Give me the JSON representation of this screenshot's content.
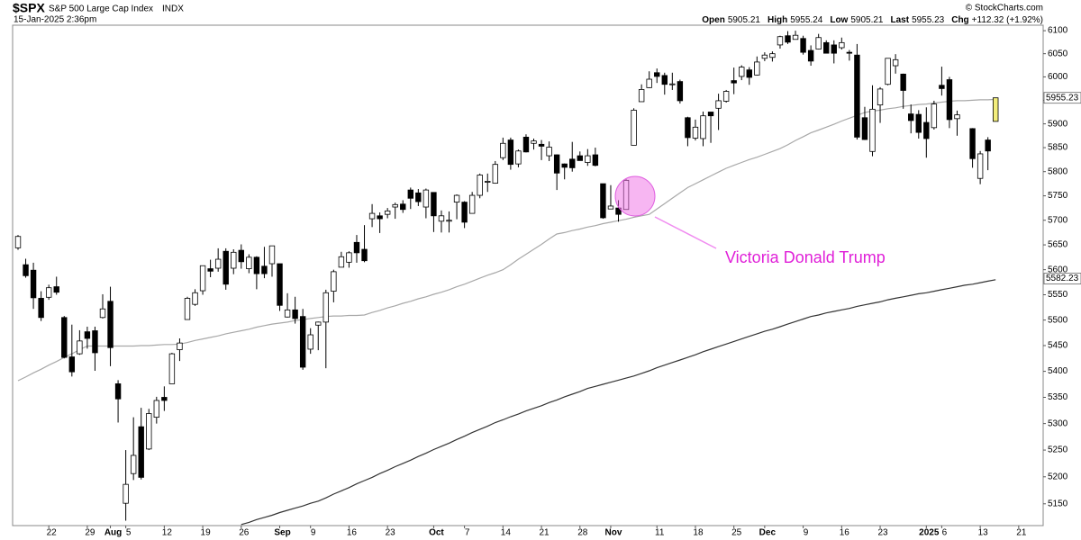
{
  "chart_data": {
    "type": "candlestick",
    "symbol": "$SPX",
    "title": "S&P 500 Large Cap Index",
    "exchange": "INDX",
    "timestamp": "15-Jan-2025 2:36pm",
    "source": "© StockCharts.com",
    "quote": [
      {
        "label": "Open",
        "value": "5905.21"
      },
      {
        "label": "High",
        "value": "5955.24"
      },
      {
        "label": "Low",
        "value": "5905.21"
      },
      {
        "label": "Last",
        "value": "5955.23"
      },
      {
        "label": "Chg",
        "value": "+112.32 (+1.92%)"
      }
    ],
    "annotation": "Victoria Donald Trump",
    "log_scale": true,
    "ylim": [
      5110,
      6112
    ],
    "yticks": [
      5150,
      5200,
      5250,
      5300,
      5350,
      5400,
      5450,
      5500,
      5550,
      5600,
      5650,
      5700,
      5750,
      5800,
      5850,
      5900,
      5950,
      6000,
      6050,
      6100
    ],
    "up_color": "#ffffff",
    "down_color": "#000000",
    "last_color": "#f3ee7c",
    "price_markers": [
      5955.23,
      5582.23
    ],
    "categories": [
      null,
      null,
      null,
      null,
      "22",
      null,
      null,
      null,
      null,
      "29",
      null,
      null,
      "Aug",
      null,
      "5",
      null,
      null,
      null,
      null,
      "12",
      null,
      null,
      null,
      null,
      "19",
      null,
      null,
      null,
      null,
      "26",
      null,
      null,
      null,
      null,
      "Sep",
      null,
      null,
      null,
      "9",
      null,
      null,
      null,
      null,
      "16",
      null,
      null,
      null,
      null,
      "23",
      null,
      null,
      null,
      null,
      null,
      "Oct",
      null,
      null,
      null,
      "7",
      null,
      null,
      null,
      null,
      "14",
      null,
      null,
      null,
      null,
      "21",
      null,
      null,
      null,
      null,
      "28",
      null,
      null,
      null,
      "Nov",
      null,
      null,
      null,
      null,
      null,
      "11",
      null,
      null,
      null,
      null,
      "18",
      null,
      null,
      null,
      null,
      "25",
      null,
      null,
      null,
      "Dec",
      null,
      null,
      null,
      null,
      "9",
      null,
      null,
      null,
      null,
      "16",
      null,
      null,
      null,
      null,
      "23",
      null,
      null,
      null,
      null,
      null,
      "2025",
      null,
      "6",
      null,
      null,
      null,
      null,
      "13",
      null,
      null,
      null,
      null,
      "21"
    ],
    "open": [
      5644,
      5610,
      5599,
      5543,
      5545,
      5566,
      5505,
      5428,
      5434,
      5477,
      5479,
      5505,
      5537,
      5376,
      5151,
      5206,
      5294,
      5252,
      5312,
      5350,
      5376,
      5442,
      5501,
      5531,
      5558,
      5602,
      5603,
      5637,
      5603,
      5639,
      5602,
      5625,
      5607,
      5612,
      5612,
      5506,
      5520,
      5507,
      5443,
      5490,
      5496,
      5557,
      5605,
      5615,
      5655,
      5641,
      5703,
      5709,
      5712,
      5727,
      5733,
      5762,
      5756,
      5727,
      5757,
      5698,
      5698,
      5737,
      5737,
      5714,
      5751,
      5778,
      5776,
      5829,
      5866,
      5816,
      5872,
      5859,
      5857,
      5833,
      5835,
      5816,
      5826,
      5833,
      5819,
      5835,
      5775,
      5723,
      5725,
      5722,
      5855,
      5947,
      5977,
      6009,
      6003,
      5985,
      5990,
      5913,
      5870,
      5869,
      5925,
      5933,
      5948,
      5992,
      6001,
      6015,
      6004,
      6040,
      6042,
      6069,
      6089,
      6081,
      6083,
      6057,
      6060,
      6074,
      6069,
      6063,
      6053,
      6047,
      5913,
      5842,
      5940,
      5984,
      6024,
      6006,
      5921,
      5920,
      5903,
      5892,
      5982,
      5994,
      5911,
      null,
      5890,
      5786,
      5866,
      5905.21,
      null,
      null,
      null
    ],
    "high": [
      5670,
      5622,
      5614,
      5557,
      5570,
      5586,
      5508,
      5491,
      5480,
      5487,
      5487,
      5551,
      5566,
      5383,
      5250,
      5312,
      5330,
      5328,
      5351,
      5371,
      5436,
      5464,
      5546,
      5561,
      5608,
      5620,
      5643,
      5643,
      5641,
      5651,
      5631,
      5627,
      5646,
      5648,
      5612,
      5553,
      5546,
      5522,
      5484,
      5497,
      5560,
      5600,
      5636,
      5637,
      5670,
      5690,
      5733,
      5716,
      5725,
      5736,
      5741,
      5767,
      5764,
      5765,
      5757,
      5720,
      5718,
      5753,
      5739,
      5758,
      5796,
      5796,
      5822,
      5871,
      5871,
      5846,
      5878,
      5869,
      5866,
      5863,
      5836,
      5817,
      5862,
      5842,
      5847,
      5850,
      5775,
      5772,
      5741,
      5784,
      5933,
      5984,
      6012,
      6018,
      6009,
      6009,
      5994,
      5915,
      5909,
      5926,
      5925,
      5964,
      5972,
      6020,
      6025,
      6021,
      6044,
      6053,
      6055,
      6089,
      6099,
      6100,
      6089,
      6068,
      6093,
      6079,
      6079,
      6085,
      6058,
      6071,
      5936,
      5982,
      5978,
      6040,
      6049,
      6007,
      5941,
      5929,
      5935,
      5949,
      6022,
      6000,
      5928,
      null,
      5891,
      5843,
      5872,
      5955.24,
      null,
      null,
      null
    ],
    "low": [
      5640,
      5584,
      5522,
      5498,
      5540,
      5550,
      5425,
      5390,
      5432,
      5444,
      5401,
      5503,
      5410,
      5302,
      5119,
      5194,
      5195,
      5250,
      5300,
      5324,
      5376,
      5420,
      5501,
      5528,
      5550,
      5585,
      5596,
      5560,
      5591,
      5602,
      5593,
      5561,
      5583,
      5586,
      5518,
      5505,
      5493,
      5403,
      5434,
      5441,
      5406,
      5535,
      5605,
      5604,
      5614,
      5615,
      5686,
      5674,
      5704,
      5703,
      5715,
      5723,
      5729,
      5704,
      5676,
      5675,
      5675,
      5702,
      5684,
      5714,
      5745,
      5758,
      5775,
      5824,
      5804,
      5809,
      5840,
      5846,
      5824,
      5822,
      5762,
      5784,
      5800,
      5823,
      5812,
      5811,
      5703,
      5723,
      5697,
      5722,
      5855,
      5947,
      5976,
      5987,
      5962,
      5972,
      5943,
      5853,
      5865,
      5853,
      5860,
      5887,
      5945,
      5963,
      5993,
      5983,
      6003,
      6034,
      6033,
      6061,
      6071,
      6081,
      6048,
      6024,
      6059,
      6051,
      6029,
      6059,
      6035,
      5867,
      5866,
      5832,
      5902,
      5982,
      6007,
      5932,
      5880,
      5869,
      5829,
      5888,
      5960,
      5891,
      5875,
      null,
      5808,
      5774,
      5803,
      5905.21,
      null,
      null,
      null
    ],
    "close": [
      5667,
      5588,
      5544,
      5505,
      5564,
      5555,
      5427,
      5399,
      5459,
      5464,
      5436,
      5522,
      5446,
      5347,
      5186,
      5240,
      5199,
      5319,
      5344,
      5344,
      5434,
      5455,
      5543,
      5554,
      5608,
      5597,
      5621,
      5571,
      5635,
      5616,
      5625,
      5592,
      5592,
      5648,
      5529,
      5520,
      5503,
      5408,
      5471,
      5496,
      5554,
      5596,
      5626,
      5634,
      5634,
      5618,
      5714,
      5703,
      5719,
      5732,
      5722,
      5745,
      5738,
      5762,
      5709,
      5709,
      5700,
      5751,
      5696,
      5751,
      5793,
      5780,
      5815,
      5859,
      5815,
      5843,
      5841,
      5864,
      5853,
      5851,
      5797,
      5809,
      5808,
      5823,
      5833,
      5813,
      5705,
      5729,
      5712,
      5782,
      5929,
      5973,
      5995,
      6001,
      5984,
      5985,
      5949,
      5871,
      5893,
      5917,
      5917,
      5949,
      5969,
      5987,
      6021,
      5999,
      6032,
      6047,
      6050,
      6087,
      6075,
      6090,
      6053,
      6034,
      6085,
      6051,
      6051,
      6074,
      6051,
      5872,
      5867,
      5931,
      5974,
      6040,
      6037,
      5971,
      5907,
      5882,
      5869,
      5942,
      5975,
      5909,
      5919,
      null,
      5827,
      5837,
      5843,
      5955.23,
      null,
      null,
      null
    ],
    "overlays": [
      {
        "color": "#a8a8a8",
        "values": [
          5382,
          5389,
          5397,
          5404,
          5412,
          5419,
          5427,
          5434,
          5442,
          5449,
          5449,
          5449,
          5449,
          5449,
          5449,
          5449,
          5450,
          5450,
          5451,
          5452,
          5452,
          5453,
          5456,
          5460,
          5463,
          5466,
          5469,
          5473,
          5476,
          5479,
          5482,
          5486,
          5489,
          5492,
          5494,
          5496,
          5499,
          5501,
          5503,
          5505,
          5507,
          5508,
          5508,
          5509,
          5509,
          5510,
          5515,
          5519,
          5524,
          5528,
          5533,
          5537,
          5542,
          5546,
          5551,
          5555,
          5560,
          5566,
          5571,
          5577,
          5583,
          5589,
          5594,
          5600,
          5610,
          5621,
          5631,
          5641,
          5651,
          5662,
          5672,
          5675,
          5679,
          5682,
          5686,
          5689,
          5693,
          5696,
          5699,
          5702,
          5706,
          5709,
          5712,
          5723,
          5734,
          5745,
          5756,
          5767,
          5775,
          5783,
          5791,
          5799,
          5807,
          5813,
          5819,
          5825,
          5830,
          5836,
          5842,
          5848,
          5856,
          5865,
          5873,
          5881,
          5887,
          5893,
          5899,
          5906,
          5912,
          5918,
          5924,
          5927,
          5929,
          5932,
          5934,
          5937,
          5939,
          5941,
          5942,
          5944,
          5946,
          5948,
          5949,
          5949,
          5950,
          5951,
          5951,
          5952,
          null,
          null,
          null
        ]
      },
      {
        "color": "#333333",
        "values": [
          null,
          null,
          null,
          null,
          null,
          null,
          null,
          null,
          null,
          null,
          null,
          null,
          null,
          null,
          null,
          null,
          null,
          null,
          null,
          null,
          null,
          null,
          null,
          null,
          null,
          null,
          null,
          null,
          null,
          5112,
          5116,
          5121,
          5125,
          5129,
          5134,
          5138,
          5142,
          5146,
          5151,
          5155,
          5161,
          5168,
          5174,
          5180,
          5187,
          5193,
          5199,
          5206,
          5212,
          5219,
          5225,
          5231,
          5238,
          5244,
          5251,
          5257,
          5263,
          5270,
          5276,
          5283,
          5289,
          5295,
          5302,
          5307,
          5313,
          5318,
          5324,
          5329,
          5334,
          5340,
          5345,
          5351,
          5356,
          5361,
          5367,
          5371,
          5375,
          5379,
          5383,
          5387,
          5391,
          5396,
          5401,
          5407,
          5412,
          5417,
          5422,
          5427,
          5432,
          5438,
          5443,
          5448,
          5453,
          5458,
          5463,
          5468,
          5473,
          5478,
          5482,
          5487,
          5492,
          5497,
          5502,
          5507,
          5510,
          5514,
          5517,
          5520,
          5523,
          5527,
          5530,
          5533,
          5536,
          5540,
          5543,
          5546,
          5549,
          5552,
          5554,
          5557,
          5560,
          5563,
          5566,
          5569,
          5571,
          5574,
          5577,
          5580,
          null,
          null,
          null
        ]
      }
    ]
  }
}
